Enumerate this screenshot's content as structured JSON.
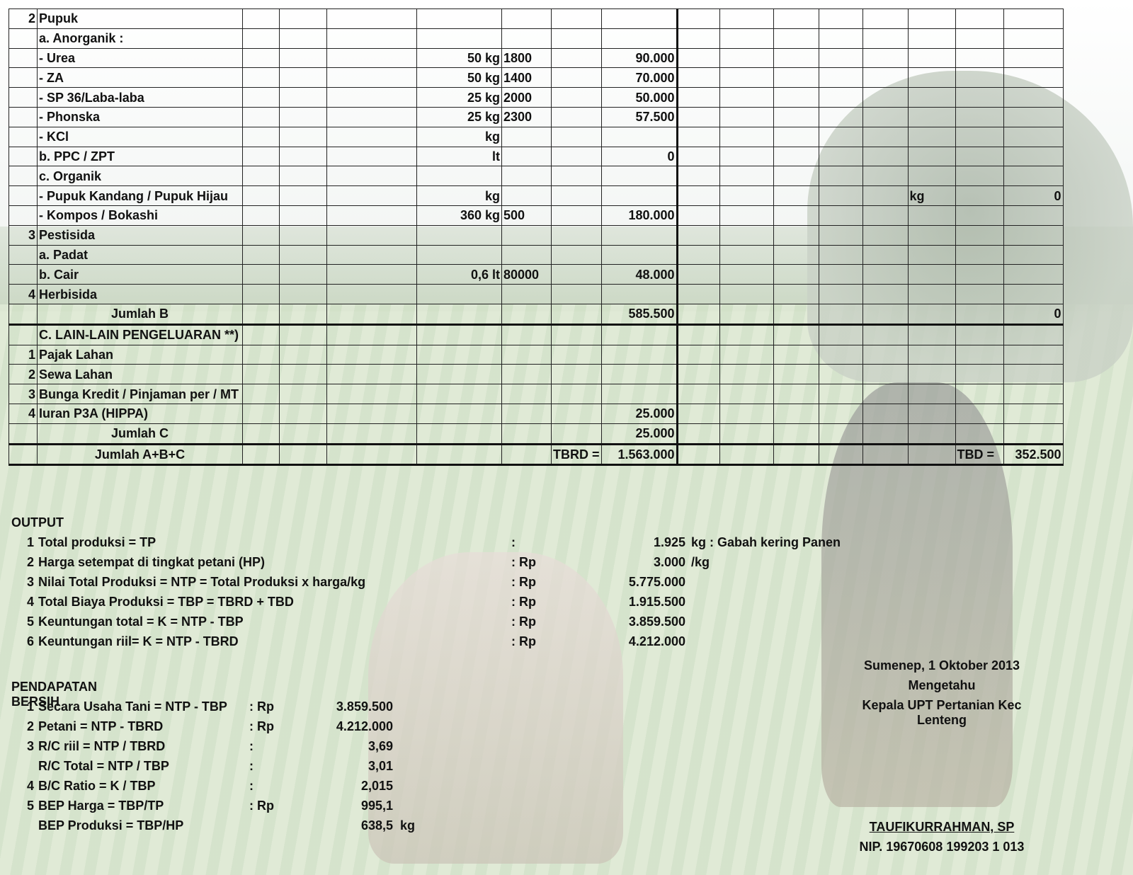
{
  "table": {
    "rows": [
      {
        "no": "2",
        "item": "Pupuk",
        "qty": "",
        "price": "",
        "total": "",
        "r1": "",
        "r2": ""
      },
      {
        "no": "",
        "item": "a. Anorganik :",
        "qty": "",
        "price": "",
        "total": "",
        "r1": "",
        "r2": ""
      },
      {
        "no": "",
        "item": "- Urea",
        "qty": "50 kg",
        "price": "1800",
        "total": "90.000",
        "r1": "",
        "r2": ""
      },
      {
        "no": "",
        "item": "- ZA",
        "qty": "50 kg",
        "price": "1400",
        "total": "70.000",
        "r1": "",
        "r2": ""
      },
      {
        "no": "",
        "item": "- SP 36/Laba-laba",
        "qty": "25 kg",
        "price": "2000",
        "total": "50.000",
        "r1": "",
        "r2": ""
      },
      {
        "no": "",
        "item": "- Phonska",
        "qty": "25 kg",
        "price": "2300",
        "total": "57.500",
        "r1": "",
        "r2": ""
      },
      {
        "no": "",
        "item": "- KCl",
        "qty": "kg",
        "price": "",
        "total": "",
        "r1": "",
        "r2": ""
      },
      {
        "no": "",
        "item": "b. PPC / ZPT",
        "qty": "lt",
        "price": "",
        "total": "0",
        "r1": "",
        "r2": ""
      },
      {
        "no": "",
        "item": "c. Organik",
        "qty": "",
        "price": "",
        "total": "",
        "r1": "",
        "r2": ""
      },
      {
        "no": "",
        "item": "- Pupuk Kandang / Pupuk Hijau",
        "qty": "kg",
        "price": "",
        "total": "",
        "r1": "kg",
        "r2": "0"
      },
      {
        "no": "",
        "item": "- Kompos / Bokashi",
        "qty": "360 kg",
        "price": "500",
        "total": "180.000",
        "r1": "",
        "r2": ""
      },
      {
        "no": "3",
        "item": "Pestisida",
        "qty": "",
        "price": "",
        "total": "",
        "r1": "",
        "r2": ""
      },
      {
        "no": "",
        "item": "a. Padat",
        "qty": "",
        "price": "",
        "total": "",
        "r1": "",
        "r2": ""
      },
      {
        "no": "",
        "item": "b. Cair",
        "qty": "0,6 lt",
        "price": "80000",
        "total": "48.000",
        "r1": "",
        "r2": ""
      },
      {
        "no": "4",
        "item": "Herbisida",
        "qty": "",
        "price": "",
        "total": "",
        "r1": "",
        "r2": ""
      },
      {
        "no": "",
        "item": "Jumlah B",
        "qty": "",
        "price": "",
        "total": "585.500",
        "r1": "",
        "r2": "0"
      },
      {
        "no": "",
        "item": "C. LAIN-LAIN PENGELUARAN **)",
        "qty": "",
        "price": "",
        "total": "",
        "r1": "",
        "r2": ""
      },
      {
        "no": "1",
        "item": "Pajak Lahan",
        "qty": "",
        "price": "",
        "total": "",
        "r1": "",
        "r2": ""
      },
      {
        "no": "2",
        "item": "Sewa Lahan",
        "qty": "",
        "price": "",
        "total": "",
        "r1": "",
        "r2": ""
      },
      {
        "no": "3",
        "item": "Bunga Kredit / Pinjaman per / MT",
        "qty": "",
        "price": "",
        "total": "",
        "r1": "",
        "r2": ""
      },
      {
        "no": "4",
        "item": "Iuran P3A (HIPPA)",
        "qty": "",
        "price": "",
        "total": "25.000",
        "r1": "",
        "r2": ""
      },
      {
        "no": "",
        "item": "Jumlah C",
        "qty": "",
        "price": "",
        "total": "25.000",
        "r1": "",
        "r2": ""
      },
      {
        "no": "",
        "item": "Jumlah A+B+C",
        "qty": "",
        "price": "",
        "tbrd_label": "TBRD =",
        "total": "1.563.000",
        "tbd_label": "TBD =",
        "r2": "352.500"
      }
    ]
  },
  "output": {
    "title": "OUTPUT",
    "items": [
      {
        "no": "1",
        "label": "Total produksi = TP",
        "sep": ":",
        "value": "1.925",
        "unit": "kg : Gabah kering Panen"
      },
      {
        "no": "2",
        "label": "Harga setempat di tingkat petani (HP)",
        "sep": ": Rp",
        "value": "3.000",
        "unit": "/kg"
      },
      {
        "no": "3",
        "label": "Nilai Total Produksi = NTP = Total Produksi x harga/kg",
        "sep": ": Rp",
        "value": "5.775.000",
        "unit": ""
      },
      {
        "no": "4",
        "label": "Total Biaya Produksi = TBP = TBRD + TBD",
        "sep": ": Rp",
        "value": "1.915.500",
        "unit": ""
      },
      {
        "no": "5",
        "label": "Keuntungan total = K = NTP - TBP",
        "sep": ": Rp",
        "value": "3.859.500",
        "unit": ""
      },
      {
        "no": "6",
        "label": "Keuntungan riil= K = NTP - TBRD",
        "sep": ": Rp",
        "value": "4.212.000",
        "unit": ""
      }
    ]
  },
  "income": {
    "title": "PENDAPATAN BERSIH",
    "items": [
      {
        "no": "1",
        "label": "Secara Usaha Tani = NTP - TBP",
        "sep": ": Rp",
        "value": "3.859.500",
        "unit": ""
      },
      {
        "no": "2",
        "label": "Petani = NTP - TBRD",
        "sep": ": Rp",
        "value": "4.212.000",
        "unit": ""
      },
      {
        "no": "3",
        "label": "R/C riil = NTP / TBRD",
        "sep": ":",
        "value": "3,69",
        "unit": ""
      },
      {
        "no": "",
        "label": "R/C Total = NTP / TBP",
        "sep": ":",
        "value": "3,01",
        "unit": ""
      },
      {
        "no": "4",
        "label": "B/C Ratio = K / TBP",
        "sep": ":",
        "value": "2,015",
        "unit": ""
      },
      {
        "no": "5",
        "label": "BEP Harga = TBP/TP",
        "sep": ": Rp",
        "value": "995,1",
        "unit": ""
      },
      {
        "no": "",
        "label": "BEP Produksi = TBP/HP",
        "sep": "",
        "value": "638,5",
        "unit": "kg"
      }
    ]
  },
  "signature": {
    "place_date": "Sumenep, 1 Oktober 2013",
    "line2": "Mengetahu",
    "line3": "Kepala UPT Pertanian Kec Lenteng",
    "name": "TAUFIKURRAHMAN, SP",
    "nip": "NIP. 19670608 199203 1 013"
  }
}
